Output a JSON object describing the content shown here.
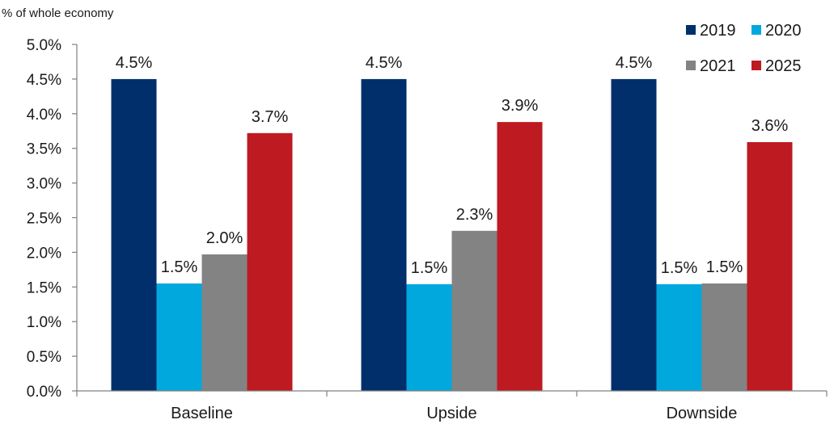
{
  "chart_data": {
    "type": "bar",
    "ylabel": "% of whole economy",
    "categories": [
      "Baseline",
      "Upside",
      "Downside"
    ],
    "series": [
      {
        "name": "2019",
        "color": "#002f6c",
        "values": [
          4.5,
          4.5,
          4.5
        ],
        "labels": [
          "4.5%",
          "4.5%",
          "4.5%"
        ]
      },
      {
        "name": "2020",
        "color": "#00a8de",
        "values": [
          1.55,
          1.54,
          1.54
        ],
        "labels": [
          "1.5%",
          "1.5%",
          "1.5%"
        ]
      },
      {
        "name": "2021",
        "color": "#838383",
        "values": [
          1.97,
          2.31,
          1.55
        ],
        "labels": [
          "2.0%",
          "2.3%",
          "1.5%"
        ]
      },
      {
        "name": "2025",
        "color": "#be1a21",
        "values": [
          3.72,
          3.88,
          3.59
        ],
        "labels": [
          "3.7%",
          "3.9%",
          "3.6%"
        ]
      }
    ],
    "ylim": [
      0,
      5
    ],
    "yticks": [
      0,
      0.5,
      1,
      1.5,
      2,
      2.5,
      3,
      3.5,
      4,
      4.5,
      5
    ],
    "ytick_labels": [
      "0.0%",
      "0.5%",
      "1.0%",
      "1.5%",
      "2.0%",
      "2.5%",
      "3.0%",
      "3.5%",
      "4.0%",
      "4.5%",
      "5.0%"
    ],
    "grid": false,
    "legend_position": "top-right"
  }
}
